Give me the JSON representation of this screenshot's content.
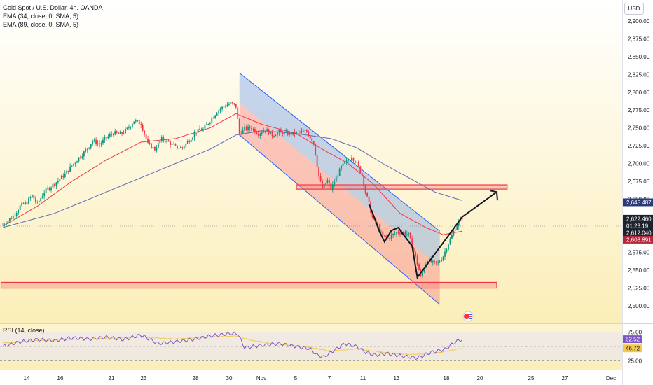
{
  "chart_data": {
    "type": "candlestick",
    "title": "Gold Spot / U.S. Dollar, 4h, OANDA",
    "indicators": [
      {
        "label": "EMA (34, close, 0, SMA, 5)",
        "color": "#f23645"
      },
      {
        "label": "EMA (89, close, 0, SMA, 5)",
        "color": "#5d6bb8"
      }
    ],
    "currency": "USD",
    "price_axis": {
      "ylim": [
        2485,
        2915
      ],
      "ticks": [
        2500,
        2525,
        2550,
        2575,
        2600,
        2625,
        2650,
        2675,
        2700,
        2725,
        2750,
        2775,
        2800,
        2825,
        2850,
        2875,
        2900
      ],
      "tick_labels": [
        "2,500.00",
        "2,525.00",
        "2,550.00",
        "2,575.00",
        "2,600.00",
        "2,625.00",
        "2,650.00",
        "2,675.00",
        "2,700.00",
        "2,725.00",
        "2,750.00",
        "2,775.00",
        "2,800.00",
        "2,825.00",
        "2,850.00",
        "2,875.00",
        "2,900.00"
      ]
    },
    "time_axis": {
      "labels": [
        "14",
        "16",
        "21",
        "23",
        "28",
        "30",
        "Nov",
        "5",
        "7",
        "11",
        "13",
        "18",
        "20",
        "25",
        "27",
        "Dec"
      ]
    },
    "price_badges": [
      {
        "value": 2645.487,
        "text": "2,645.487",
        "color": "#2c3a7a"
      },
      {
        "value": 2622.46,
        "text": "2,622.460",
        "color": "#1e222d"
      },
      {
        "value": 2618.0,
        "text": "01:23:19",
        "color": "#1e222d"
      },
      {
        "value": 2612.04,
        "text": "2,612.040",
        "color": "#1e222d"
      },
      {
        "value": 2603.891,
        "text": "2,603.891",
        "color": "#b2283a"
      }
    ],
    "last_price": 2612.04,
    "candles": {
      "anchors": [
        [
          0,
          2614
        ],
        [
          3,
          2620
        ],
        [
          6,
          2626
        ],
        [
          10,
          2640
        ],
        [
          14,
          2646
        ],
        [
          17,
          2655
        ],
        [
          20,
          2643
        ],
        [
          24,
          2660
        ],
        [
          28,
          2668
        ],
        [
          32,
          2676
        ],
        [
          36,
          2685
        ],
        [
          40,
          2697
        ],
        [
          44,
          2708
        ],
        [
          48,
          2718
        ],
        [
          52,
          2732
        ],
        [
          56,
          2727
        ],
        [
          60,
          2736
        ],
        [
          64,
          2743
        ],
        [
          68,
          2741
        ],
        [
          72,
          2748
        ],
        [
          76,
          2760
        ],
        [
          80,
          2756
        ],
        [
          84,
          2727
        ],
        [
          88,
          2720
        ],
        [
          92,
          2734
        ],
        [
          96,
          2730
        ],
        [
          100,
          2723
        ],
        [
          104,
          2722
        ],
        [
          108,
          2733
        ],
        [
          112,
          2745
        ],
        [
          116,
          2748
        ],
        [
          120,
          2760
        ],
        [
          124,
          2773
        ],
        [
          128,
          2780
        ],
        [
          132,
          2785
        ],
        [
          135,
          2780
        ],
        [
          137,
          2742
        ],
        [
          140,
          2749
        ],
        [
          144,
          2750
        ],
        [
          148,
          2742
        ],
        [
          152,
          2748
        ],
        [
          156,
          2740
        ],
        [
          160,
          2744
        ],
        [
          164,
          2742
        ],
        [
          168,
          2742
        ],
        [
          172,
          2744
        ],
        [
          176,
          2745
        ],
        [
          180,
          2729
        ],
        [
          183,
          2682
        ],
        [
          185,
          2665
        ],
        [
          188,
          2676
        ],
        [
          190,
          2664
        ],
        [
          193,
          2680
        ],
        [
          196,
          2695
        ],
        [
          199,
          2702
        ],
        [
          202,
          2710
        ],
        [
          205,
          2700
        ],
        [
          208,
          2684
        ],
        [
          210,
          2660
        ],
        [
          212,
          2643
        ],
        [
          214,
          2624
        ],
        [
          217,
          2610
        ],
        [
          220,
          2598
        ],
        [
          223,
          2595
        ],
        [
          226,
          2600
        ],
        [
          229,
          2604
        ],
        [
          232,
          2603
        ],
        [
          235,
          2600
        ],
        [
          237,
          2584
        ],
        [
          240,
          2560
        ],
        [
          242,
          2540
        ],
        [
          244,
          2555
        ],
        [
          246,
          2565
        ],
        [
          249,
          2560
        ],
        [
          252,
          2560
        ],
        [
          255,
          2570
        ],
        [
          258,
          2588
        ],
        [
          261,
          2605
        ],
        [
          264,
          2618
        ],
        [
          266,
          2624
        ]
      ],
      "count": 267,
      "bull_color": "#089981",
      "bear_color": "#f23645"
    },
    "ema34": [
      [
        0,
        2612
      ],
      [
        20,
        2640
      ],
      [
        40,
        2675
      ],
      [
        60,
        2705
      ],
      [
        80,
        2730
      ],
      [
        100,
        2735
      ],
      [
        120,
        2750
      ],
      [
        135,
        2770
      ],
      [
        150,
        2755
      ],
      [
        170,
        2742
      ],
      [
        185,
        2720
      ],
      [
        200,
        2700
      ],
      [
        215,
        2670
      ],
      [
        230,
        2630
      ],
      [
        245,
        2610
      ],
      [
        255,
        2600
      ],
      [
        266,
        2605
      ]
    ],
    "ema89": [
      [
        0,
        2610
      ],
      [
        30,
        2630
      ],
      [
        60,
        2660
      ],
      [
        90,
        2690
      ],
      [
        120,
        2720
      ],
      [
        135,
        2740
      ],
      [
        150,
        2746
      ],
      [
        170,
        2742
      ],
      [
        190,
        2735
      ],
      [
        205,
        2722
      ],
      [
        220,
        2700
      ],
      [
        235,
        2680
      ],
      [
        250,
        2660
      ],
      [
        266,
        2648
      ]
    ],
    "levels": [
      {
        "type": "resistance-box",
        "from_price": 2664,
        "to_price": 2670,
        "x_from": 170,
        "x_to": 292
      },
      {
        "type": "support-box",
        "from_price": 2525,
        "to_price": 2533,
        "x_from": -1,
        "x_to": 286
      }
    ],
    "channel": {
      "upper": [
        [
          137,
          2827
        ],
        [
          253,
          2605
        ]
      ],
      "lower": [
        [
          137,
          2740
        ],
        [
          253,
          2502
        ]
      ],
      "mid": [
        [
          137,
          2785
        ],
        [
          253,
          2555
        ]
      ]
    },
    "projection_path": [
      [
        212,
        2643
      ],
      [
        215,
        2625
      ],
      [
        218,
        2605
      ],
      [
        221,
        2590
      ],
      [
        225,
        2606
      ],
      [
        229,
        2610
      ],
      [
        232,
        2600
      ],
      [
        237,
        2584
      ],
      [
        240,
        2540
      ],
      [
        245,
        2556
      ],
      [
        266,
        2625
      ],
      [
        286,
        2660
      ]
    ],
    "projection_arrow_price": 2660,
    "rsi": {
      "label": "RSI (14, close)",
      "ylim": [
        15,
        85
      ],
      "ticks": [
        25,
        75
      ],
      "tick_labels": [
        "25.00",
        "75.00"
      ],
      "badges": [
        {
          "value": 62.52,
          "text": "62.52",
          "color": "#7e57c2"
        },
        {
          "value": 46.72,
          "text": "46.72",
          "color": "#f2c94c"
        }
      ],
      "rsi_series": [
        [
          0,
          50
        ],
        [
          10,
          58
        ],
        [
          20,
          62
        ],
        [
          30,
          60
        ],
        [
          40,
          65
        ],
        [
          50,
          63
        ],
        [
          60,
          66
        ],
        [
          70,
          62
        ],
        [
          80,
          70
        ],
        [
          90,
          55
        ],
        [
          100,
          58
        ],
        [
          110,
          62
        ],
        [
          120,
          68
        ],
        [
          132,
          72
        ],
        [
          136,
          72
        ],
        [
          140,
          48
        ],
        [
          150,
          52
        ],
        [
          160,
          55
        ],
        [
          170,
          50
        ],
        [
          178,
          46
        ],
        [
          182,
          35
        ],
        [
          186,
          32
        ],
        [
          190,
          40
        ],
        [
          198,
          55
        ],
        [
          205,
          50
        ],
        [
          210,
          40
        ],
        [
          216,
          35
        ],
        [
          222,
          38
        ],
        [
          230,
          34
        ],
        [
          240,
          30
        ],
        [
          248,
          40
        ],
        [
          256,
          45
        ],
        [
          262,
          58
        ],
        [
          266,
          62
        ]
      ],
      "ma_series": [
        [
          0,
          56
        ],
        [
          20,
          60
        ],
        [
          40,
          62
        ],
        [
          60,
          64
        ],
        [
          80,
          66
        ],
        [
          100,
          63
        ],
        [
          120,
          66
        ],
        [
          135,
          68
        ],
        [
          145,
          60
        ],
        [
          160,
          54
        ],
        [
          175,
          50
        ],
        [
          190,
          42
        ],
        [
          205,
          46
        ],
        [
          220,
          40
        ],
        [
          235,
          36
        ],
        [
          250,
          38
        ],
        [
          266,
          47
        ]
      ]
    }
  }
}
